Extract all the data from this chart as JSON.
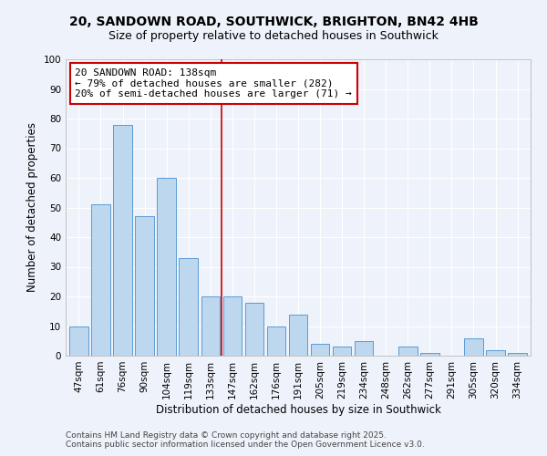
{
  "title1": "20, SANDOWN ROAD, SOUTHWICK, BRIGHTON, BN42 4HB",
  "title2": "Size of property relative to detached houses in Southwick",
  "xlabel": "Distribution of detached houses by size in Southwick",
  "ylabel": "Number of detached properties",
  "categories": [
    "47sqm",
    "61sqm",
    "76sqm",
    "90sqm",
    "104sqm",
    "119sqm",
    "133sqm",
    "147sqm",
    "162sqm",
    "176sqm",
    "191sqm",
    "205sqm",
    "219sqm",
    "234sqm",
    "248sqm",
    "262sqm",
    "277sqm",
    "291sqm",
    "305sqm",
    "320sqm",
    "334sqm"
  ],
  "values": [
    10,
    51,
    78,
    47,
    60,
    33,
    20,
    20,
    18,
    10,
    14,
    4,
    3,
    5,
    0,
    3,
    1,
    0,
    6,
    2,
    1
  ],
  "bar_color": "#bdd7ee",
  "bar_edge_color": "#5b9bd5",
  "background_color": "#eef2fa",
  "grid_color": "#ffffff",
  "vline_x": 6.5,
  "vline_color": "#cc0000",
  "annotation_line1": "20 SANDOWN ROAD: 138sqm",
  "annotation_line2": "← 79% of detached houses are smaller (282)",
  "annotation_line3": "20% of semi-detached houses are larger (71) →",
  "annotation_box_color": "#ffffff",
  "annotation_box_edge": "#cc0000",
  "ylim": [
    0,
    100
  ],
  "yticks": [
    0,
    10,
    20,
    30,
    40,
    50,
    60,
    70,
    80,
    90,
    100
  ],
  "footer1": "Contains HM Land Registry data © Crown copyright and database right 2025.",
  "footer2": "Contains public sector information licensed under the Open Government Licence v3.0.",
  "title_fontsize": 10,
  "subtitle_fontsize": 9,
  "axis_label_fontsize": 8.5,
  "tick_fontsize": 7.5,
  "annotation_fontsize": 8,
  "footer_fontsize": 6.5
}
